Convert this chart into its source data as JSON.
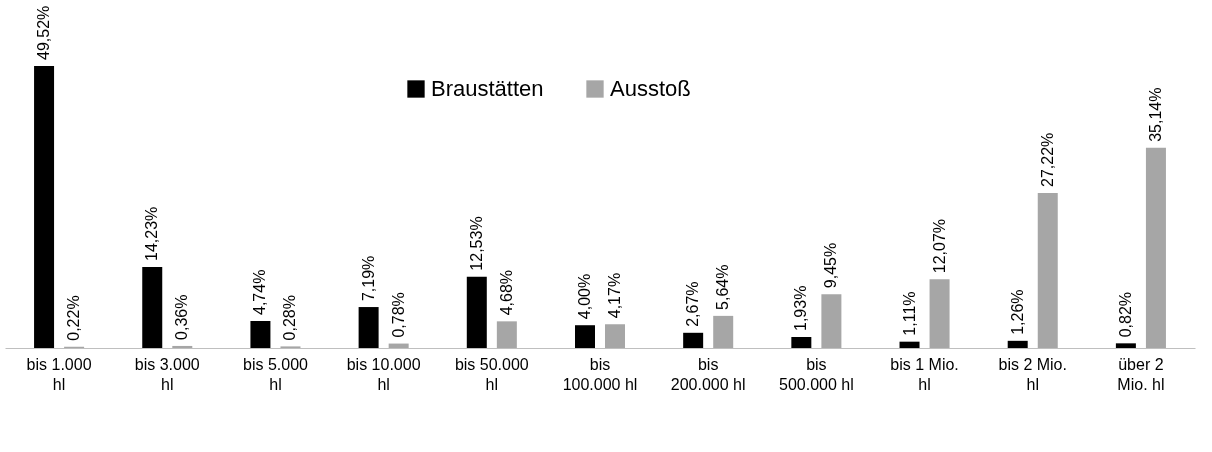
{
  "chart_data": {
    "type": "bar",
    "categories": [
      "bis 1.000 hl",
      "bis 3.000 hl",
      "bis 5.000 hl",
      "bis 10.000 hl",
      "bis 50.000 hl",
      "bis 100.000 hl",
      "bis 200.000 hl",
      "bis 500.000 hl",
      "bis 1 Mio. hl",
      "bis 2 Mio. hl",
      "über 2 Mio. hl"
    ],
    "series": [
      {
        "name": "Braustätten",
        "color": "#000000",
        "values": [
          49.52,
          14.23,
          4.74,
          7.19,
          12.53,
          4.0,
          2.67,
          1.93,
          1.11,
          1.26,
          0.82
        ],
        "value_labels": [
          "49,52%",
          "14,23%",
          "4,74%",
          "7,19%",
          "12,53%",
          "4,00%",
          "2,67%",
          "1,93%",
          "1,11%",
          "1,26%",
          "0,82%"
        ]
      },
      {
        "name": "Ausstoß",
        "color": "#a6a6a6",
        "values": [
          0.22,
          0.36,
          0.28,
          0.78,
          4.68,
          4.17,
          5.64,
          9.45,
          12.07,
          27.22,
          35.14
        ],
        "value_labels": [
          "0,22%",
          "0,36%",
          "0,28%",
          "0,78%",
          "4,68%",
          "4,17%",
          "5,64%",
          "9,45%",
          "12,07%",
          "27,22%",
          "35,14%"
        ]
      }
    ],
    "legend": "top",
    "grid": false
  }
}
